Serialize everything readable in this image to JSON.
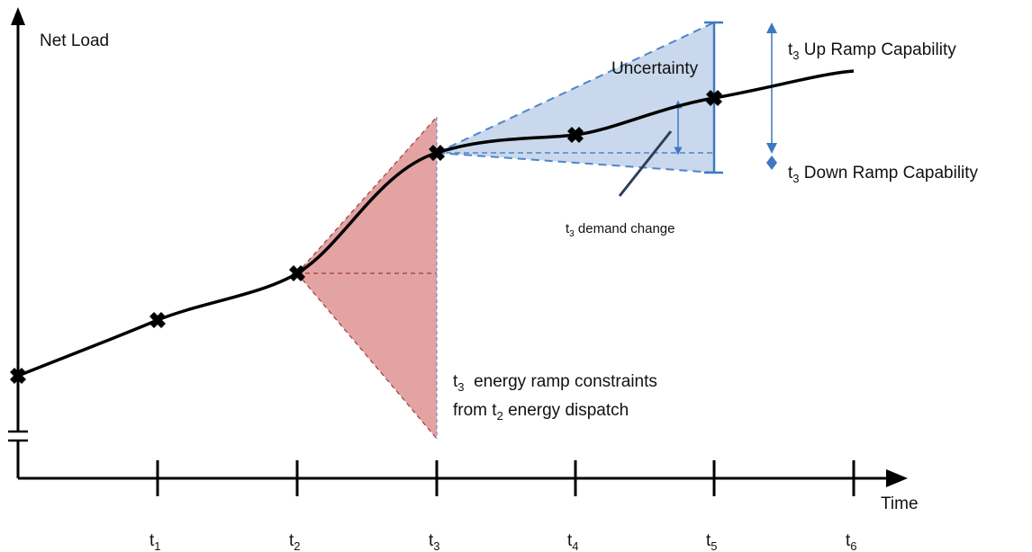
{
  "diagram": {
    "y_axis_label": "Net Load",
    "x_axis_label": "Time",
    "ticks": [
      {
        "base": "t",
        "sub": "1"
      },
      {
        "base": "t",
        "sub": "2"
      },
      {
        "base": "t",
        "sub": "3"
      },
      {
        "base": "t",
        "sub": "4"
      },
      {
        "base": "t",
        "sub": "5"
      },
      {
        "base": "t",
        "sub": "6"
      }
    ],
    "uncertainty_label": "Uncertainty",
    "up_ramp": {
      "base": "t",
      "sub": "3",
      "text": " Up Ramp Capability"
    },
    "down_ramp": {
      "base": "t",
      "sub": "3",
      "text": " Down Ramp Capability"
    },
    "demand_change": {
      "base": "t",
      "sub": "3",
      "text": " demand change"
    },
    "energy_ramp": {
      "line1_base": "t",
      "line1_sub": "3",
      "line1_text": "  energy ramp constraints",
      "line2_pre": "from t",
      "line2_sub": "2",
      "line2_text": " energy dispatch"
    },
    "colors": {
      "curve": "#000000",
      "red_fill": "#e3a3a3",
      "red_dash": "#9b3b3b",
      "blue_fill": "#c9d8ec",
      "blue_dash": "#4f84c9",
      "blue_line": "#3f78c2"
    }
  }
}
